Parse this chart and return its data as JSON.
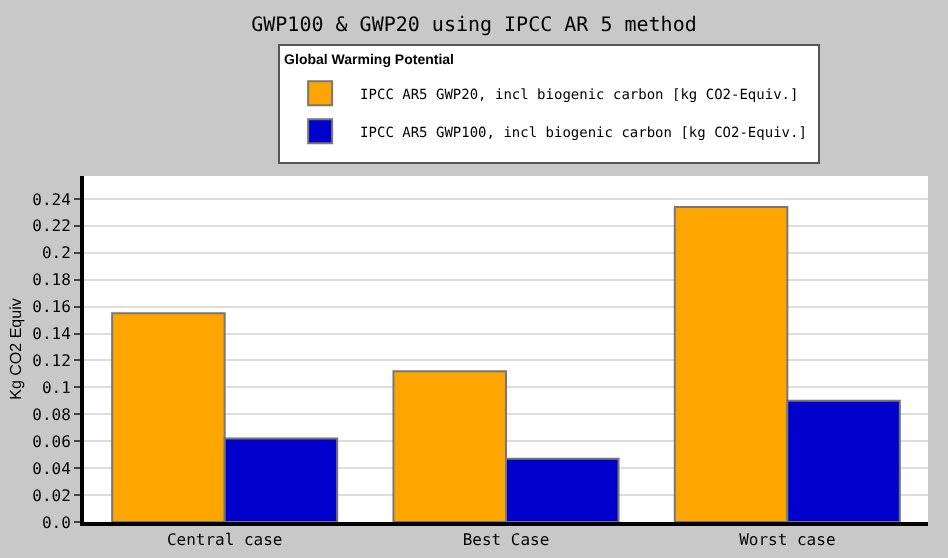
{
  "chart_data": {
    "type": "bar",
    "title": "GWP100 & GWP20 using IPCC AR 5 method",
    "ylabel": "Kg CO2 Equiv",
    "legend_title": "Global Warming Potential",
    "categories": [
      "Central case",
      "Best Case",
      "Worst case"
    ],
    "series": [
      {
        "name": "IPCC AR5 GWP20, incl biogenic carbon [kg CO2-Equiv.]",
        "color": "#ffa500",
        "values": [
          0.155,
          0.112,
          0.234
        ]
      },
      {
        "name": "IPCC AR5 GWP100, incl biogenic carbon [kg CO2-Equiv.]",
        "color": "#0000cc",
        "values": [
          0.062,
          0.047,
          0.09
        ]
      }
    ],
    "ylim": [
      0,
      0.257
    ],
    "yticks": [
      {
        "value": 0,
        "label": "0.0"
      },
      0.02,
      0.04,
      0.06,
      0.08,
      0.1,
      0.12,
      0.14,
      0.16,
      0.18,
      0.2,
      0.22,
      0.24
    ],
    "grid": "y",
    "legend": "top"
  }
}
